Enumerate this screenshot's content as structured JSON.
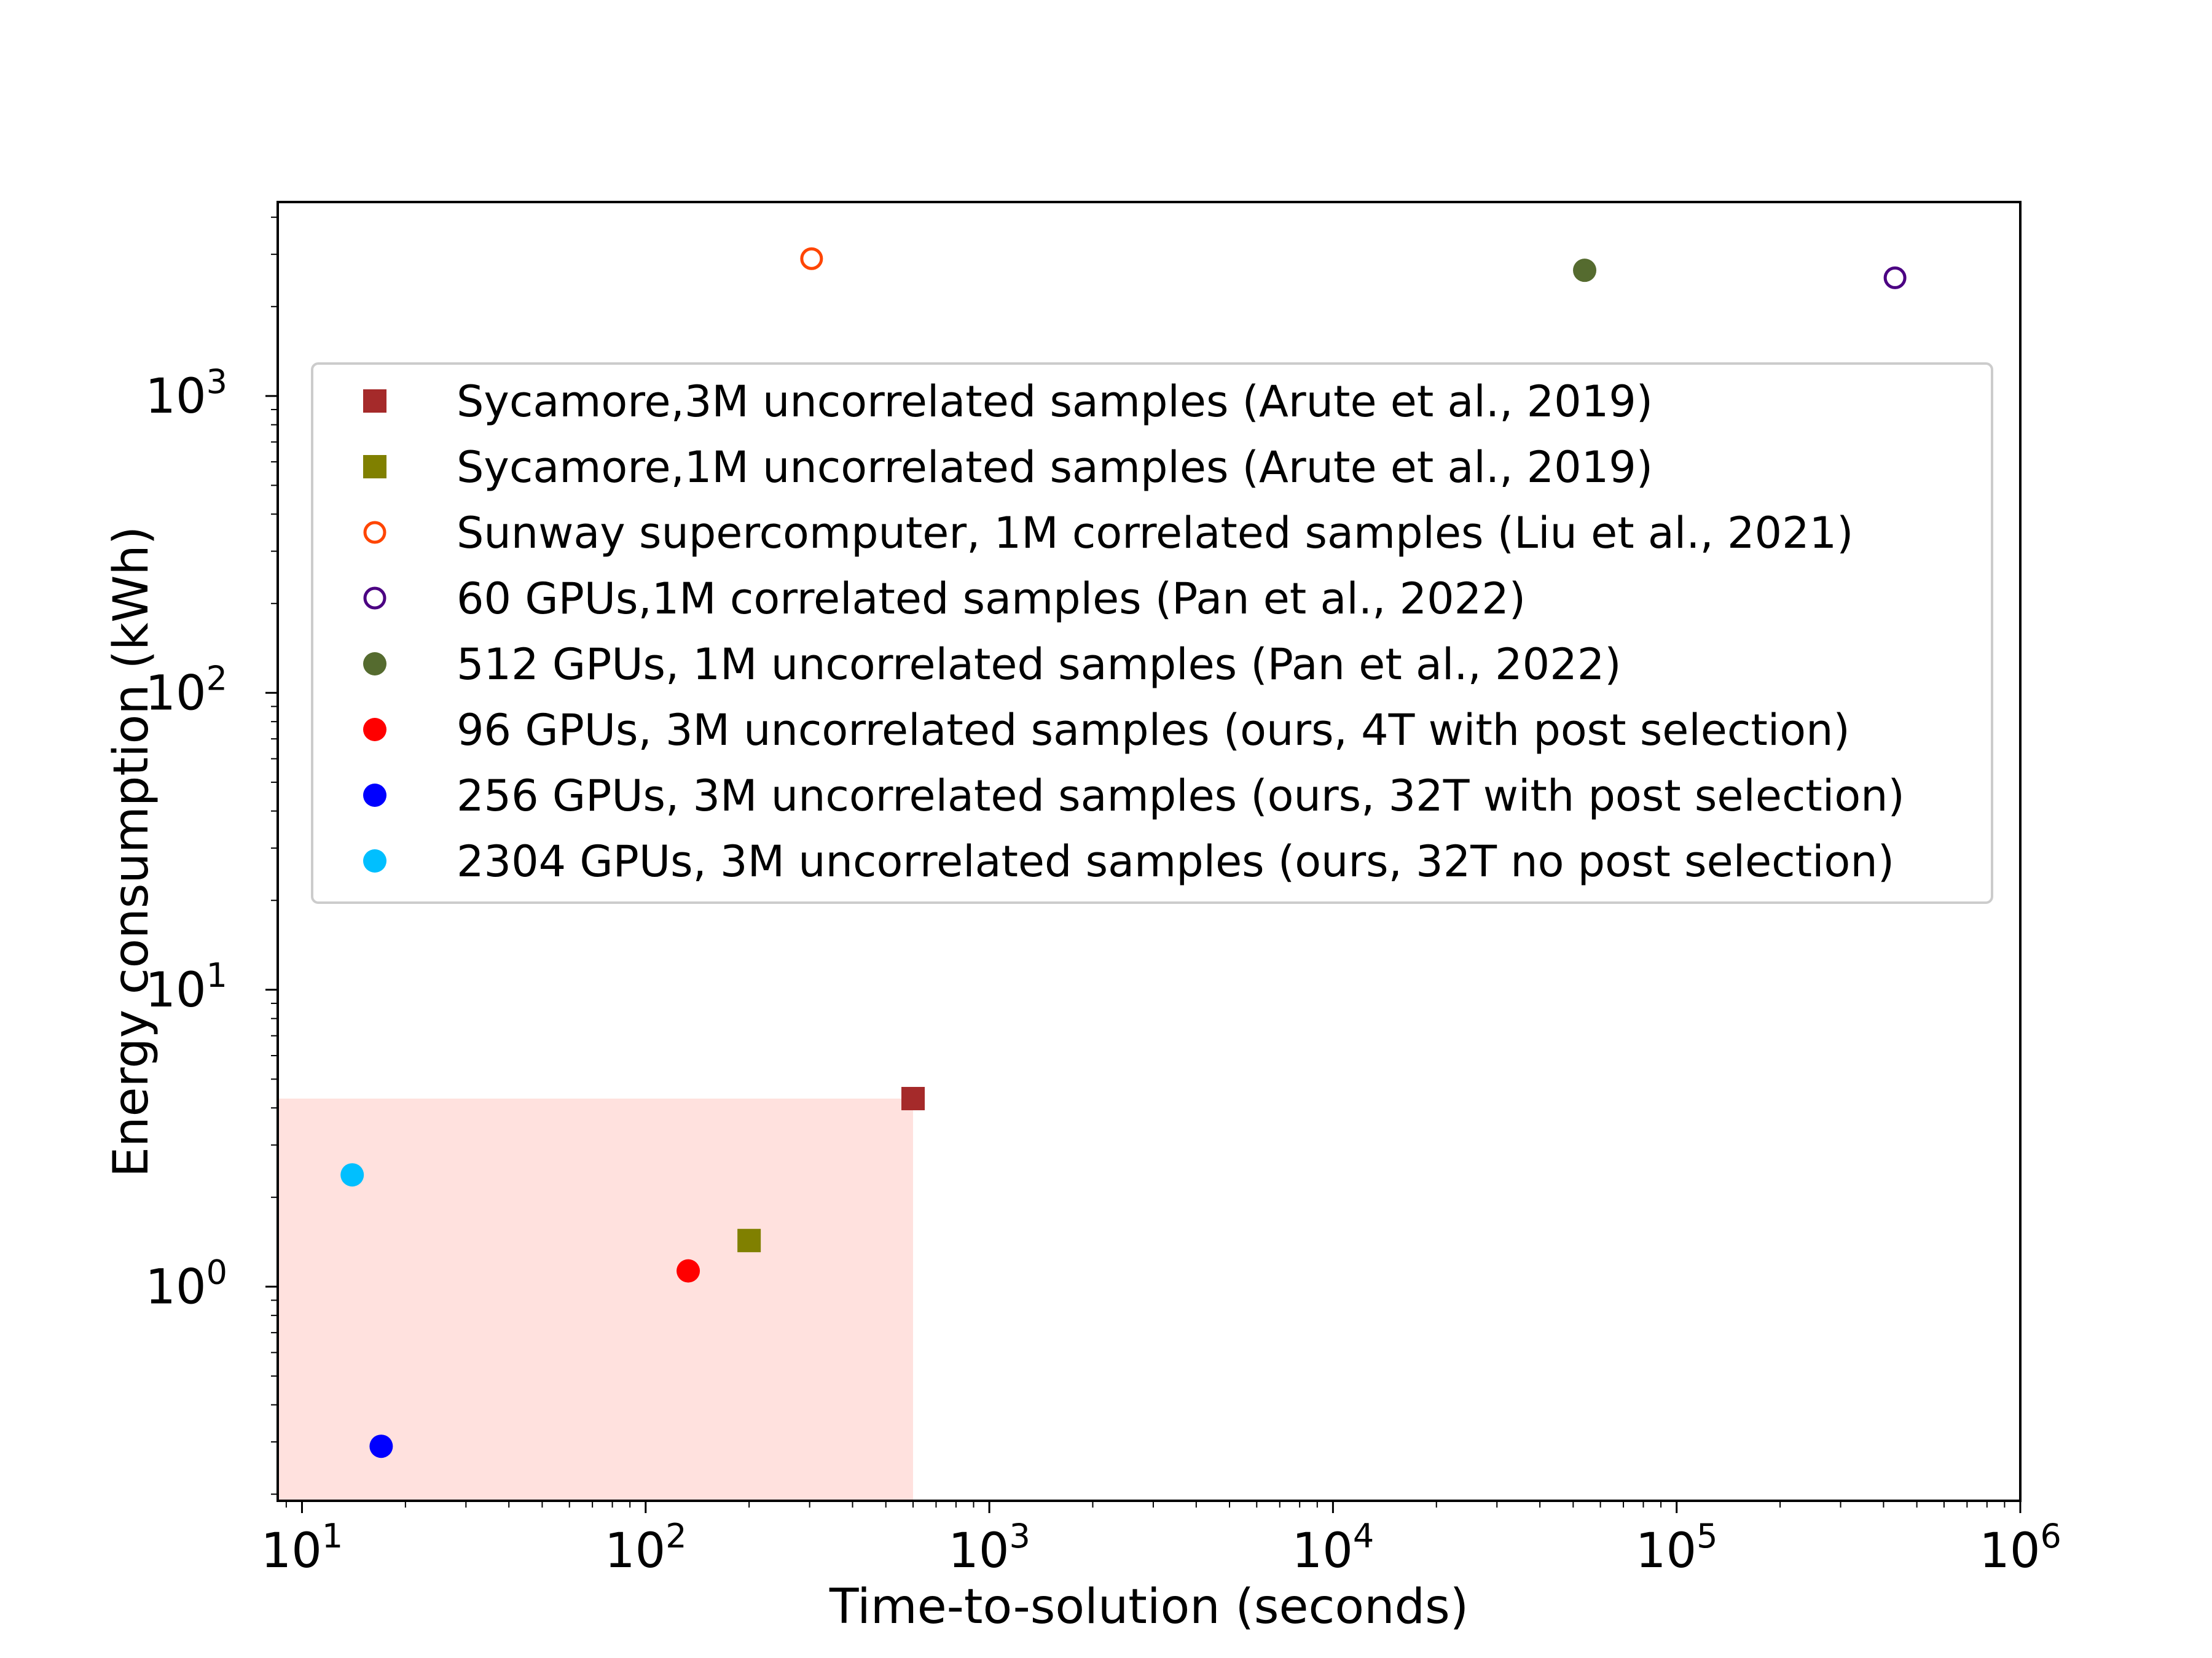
{
  "chart_data": {
    "type": "scatter",
    "title": "",
    "xlabel": "Time-to-solution (seconds)",
    "ylabel": "Energy consumption (kWh)",
    "xscale": "log",
    "yscale": "log",
    "xlim": [
      8.5,
      1000000
    ],
    "ylim": [
      0.19,
      4500
    ],
    "grid": false,
    "legend_position": "upper-right",
    "x_ticks": [
      {
        "value": 10,
        "base": "10",
        "exp": "1"
      },
      {
        "value": 100,
        "base": "10",
        "exp": "2"
      },
      {
        "value": 1000,
        "base": "10",
        "exp": "3"
      },
      {
        "value": 10000,
        "base": "10",
        "exp": "4"
      },
      {
        "value": 100000,
        "base": "10",
        "exp": "5"
      },
      {
        "value": 1000000,
        "base": "10",
        "exp": "6"
      }
    ],
    "y_ticks": [
      {
        "value": 1,
        "base": "10",
        "exp": "0"
      },
      {
        "value": 10,
        "base": "10",
        "exp": "1"
      },
      {
        "value": 100,
        "base": "10",
        "exp": "2"
      },
      {
        "value": 1000,
        "base": "10",
        "exp": "3"
      }
    ],
    "shaded_region": {
      "x": [
        8.5,
        600
      ],
      "y": [
        0.19,
        4.3
      ],
      "color": "#ffe1de"
    },
    "series": [
      {
        "name": "Sycamore,3M uncorrelated samples (Arute et al., 2019)",
        "marker": "square",
        "filled": true,
        "color": "#a52a2a",
        "x": 600,
        "y": 4.3
      },
      {
        "name": "Sycamore,1M uncorrelated samples (Arute et al., 2019)",
        "marker": "square",
        "filled": true,
        "color": "#808000",
        "x": 200,
        "y": 1.43
      },
      {
        "name": "Sunway supercomputer, 1M correlated samples (Liu et al., 2021)",
        "marker": "circle",
        "filled": false,
        "color": "#ff4500",
        "x": 304,
        "y": 2900
      },
      {
        "name": "60 GPUs,1M correlated samples (Pan et al., 2022)",
        "marker": "circle",
        "filled": false,
        "color": "#4b0082",
        "x": 432000,
        "y": 2500
      },
      {
        "name": "512 GPUs, 1M uncorrelated samples (Pan et al., 2022)",
        "marker": "circle",
        "filled": true,
        "color": "#556b2f",
        "x": 54000,
        "y": 2650
      },
      {
        "name": "96 GPUs, 3M uncorrelated samples (ours, 4T with post selection)",
        "marker": "circle",
        "filled": true,
        "color": "#ff0000",
        "x": 133,
        "y": 1.13
      },
      {
        "name": "256 GPUs, 3M uncorrelated samples (ours, 32T with post selection)",
        "marker": "circle",
        "filled": true,
        "color": "#0000ff",
        "x": 17,
        "y": 0.29
      },
      {
        "name": "2304 GPUs, 3M uncorrelated samples (ours, 32T no post selection)",
        "marker": "circle",
        "filled": true,
        "color": "#00bfff",
        "x": 14,
        "y": 2.38
      }
    ]
  }
}
